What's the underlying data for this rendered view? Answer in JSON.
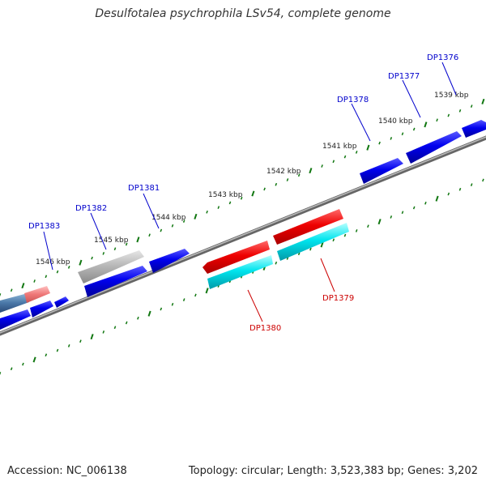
{
  "header": {
    "title": "Desulfotalea psychrophila LSv54, complete genome"
  },
  "footer": {
    "accession": "Accession: NC_006138",
    "summary": "Topology: circular; Length: 3,523,383 bp; Genes: 3,202"
  },
  "colors": {
    "forward_gene": "#0000ee",
    "reverse_gene": "#ee0000",
    "reverse_highlight": "#00e5ee",
    "faded_gene": "#9a9a9a",
    "backbone": "#777777",
    "ticks": "#117711",
    "forward_label": "#0000cc",
    "reverse_label": "#cc0000"
  },
  "ruler": {
    "unit": "kbp",
    "labels": [
      "1539 kbp",
      "1540 kbp",
      "1541 kbp",
      "1542 kbp",
      "1543 kbp",
      "1544 kbp",
      "1545 kbp",
      "1546 kbp"
    ]
  },
  "genes": {
    "forward_labels": [
      "DP1376",
      "DP1377",
      "DP1378",
      "DP1381",
      "DP1382",
      "DP1383"
    ],
    "reverse_labels": [
      "DP1379",
      "DP1380"
    ]
  }
}
